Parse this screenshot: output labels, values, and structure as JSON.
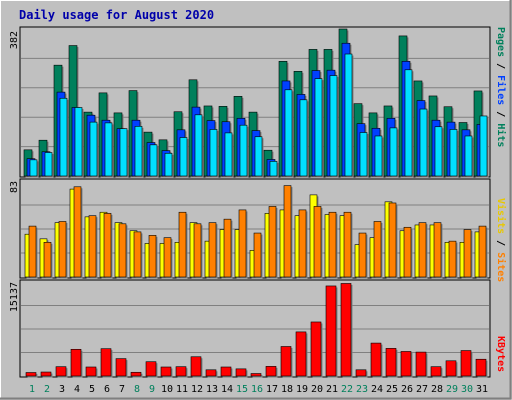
{
  "colors": {
    "background": "#c0c0c0",
    "plot_background": "#c0c0c0",
    "title": "#0000aa",
    "hits": "#00805c",
    "files": "#0040ff",
    "pages": "#00e0ff",
    "visits": "#ffff00",
    "sites": "#ff8000",
    "kbytes": "#ff0000",
    "weekday_label": "#000000",
    "weekend_label": "#00805c"
  },
  "chart_data": [
    {
      "type": "bar",
      "title": "Daily usage for August 2020",
      "categories": [
        "1",
        "2",
        "3",
        "4",
        "5",
        "6",
        "7",
        "8",
        "9",
        "10",
        "11",
        "12",
        "13",
        "14",
        "15",
        "16",
        "17",
        "18",
        "19",
        "20",
        "21",
        "22",
        "23",
        "24",
        "25",
        "26",
        "27",
        "28",
        "29",
        "30",
        "31"
      ],
      "weekend_days": [
        "1",
        "2",
        "8",
        "9",
        "15",
        "16",
        "22",
        "23",
        "29",
        "30"
      ],
      "max_label": "382",
      "ylim": [
        0,
        382
      ],
      "series": [
        {
          "name": "Hits",
          "values": [
            68,
            93,
            288,
            339,
            166,
            216,
            164,
            222,
            114,
            94,
            167,
            250,
            182,
            181,
            207,
            166,
            67,
            298,
            272,
            329,
            329,
            382,
            188,
            164,
            182,
            364,
            247,
            208,
            180,
            139,
            221
          ]
        },
        {
          "name": "Files",
          "values": [
            45,
            63,
            218,
            178,
            158,
            145,
            123,
            145,
            87,
            66,
            120,
            179,
            144,
            141,
            150,
            118,
            43,
            247,
            212,
            274,
            275,
            345,
            136,
            124,
            150,
            298,
            196,
            145,
            140,
            120,
            134
          ]
        },
        {
          "name": "Pages",
          "values": [
            42,
            61,
            202,
            178,
            140,
            138,
            123,
            129,
            81,
            59,
            100,
            159,
            121,
            112,
            132,
            102,
            38,
            224,
            198,
            253,
            261,
            317,
            113,
            104,
            125,
            276,
            174,
            128,
            121,
            104,
            156
          ]
        }
      ]
    },
    {
      "type": "bar",
      "categories": [
        "1",
        "2",
        "3",
        "4",
        "5",
        "6",
        "7",
        "8",
        "9",
        "10",
        "11",
        "12",
        "13",
        "14",
        "15",
        "16",
        "17",
        "18",
        "19",
        "20",
        "21",
        "22",
        "23",
        "24",
        "25",
        "26",
        "27",
        "28",
        "29",
        "30",
        "31"
      ],
      "max_label": "83",
      "ylim": [
        0,
        83
      ],
      "series": [
        {
          "name": "Visits",
          "values": [
            37,
            33,
            47,
            76,
            52,
            56,
            47,
            40,
            29,
            29,
            30,
            47,
            31,
            41,
            41,
            23,
            55,
            58,
            53,
            71,
            54,
            53,
            28,
            34,
            65,
            40,
            45,
            45,
            30,
            30,
            39
          ]
        },
        {
          "name": "Sites",
          "values": [
            44,
            30,
            48,
            78,
            53,
            55,
            46,
            39,
            36,
            34,
            56,
            46,
            47,
            50,
            58,
            38,
            61,
            79,
            58,
            61,
            56,
            56,
            38,
            48,
            64,
            43,
            47,
            47,
            31,
            41,
            44
          ]
        }
      ]
    },
    {
      "type": "bar",
      "categories": [
        "1",
        "2",
        "3",
        "4",
        "5",
        "6",
        "7",
        "8",
        "9",
        "10",
        "11",
        "12",
        "13",
        "14",
        "15",
        "16",
        "17",
        "18",
        "19",
        "20",
        "21",
        "22",
        "23",
        "24",
        "25",
        "26",
        "27",
        "28",
        "29",
        "30",
        "31"
      ],
      "max_label": "15137",
      "ylim": [
        0,
        15137
      ],
      "series": [
        {
          "name": "KBytes",
          "values": [
            560,
            640,
            1500,
            4300,
            1450,
            4400,
            2800,
            600,
            2300,
            1450,
            1500,
            3100,
            1000,
            1450,
            1150,
            400,
            1550,
            4750,
            7100,
            8700,
            14500,
            14900,
            1000,
            5300,
            4450,
            3950,
            3850,
            1500,
            2450,
            4100,
            2700
          ]
        }
      ]
    }
  ],
  "labels": {
    "panel1_right": [
      "Pages",
      " / ",
      "Files",
      " / ",
      "Hits"
    ],
    "panel2_right": [
      "Sites",
      " / ",
      "Visits"
    ],
    "panel3_right": [
      "KBytes"
    ]
  }
}
